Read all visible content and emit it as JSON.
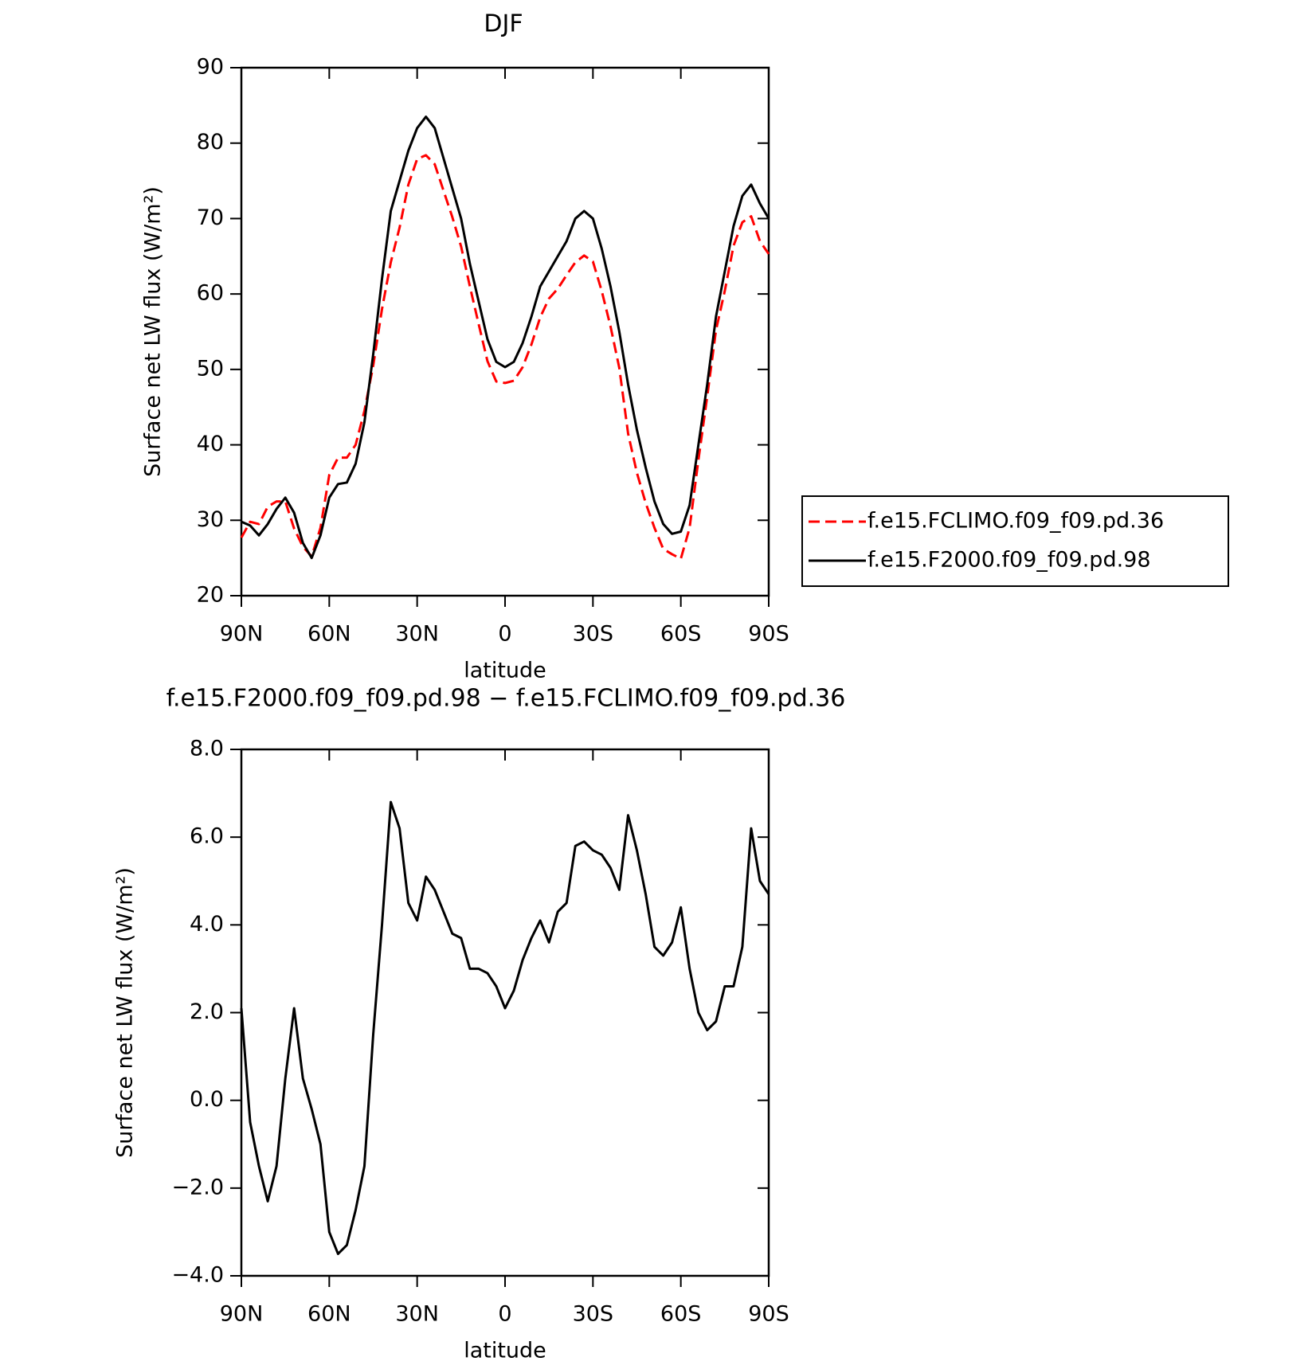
{
  "chart_data": [
    {
      "type": "line",
      "title": "DJF",
      "xlabel": "latitude",
      "ylabel": "Surface net LW flux (W/m²)",
      "x": [
        90,
        87,
        84,
        81,
        78,
        75,
        72,
        69,
        66,
        63,
        60,
        57,
        54,
        51,
        48,
        45,
        42,
        39,
        36,
        33,
        30,
        27,
        24,
        21,
        18,
        15,
        12,
        9,
        6,
        3,
        0,
        -3,
        -6,
        -9,
        -12,
        -15,
        -18,
        -21,
        -24,
        -27,
        -30,
        -33,
        -36,
        -39,
        -42,
        -45,
        -48,
        -51,
        -54,
        -57,
        -60,
        -63,
        -66,
        -69,
        -72,
        -75,
        -78,
        -81,
        -84,
        -87,
        -90
      ],
      "series": [
        {
          "name": "f.e15.FCLIMO.f09_f09.pd.36",
          "color": "#ff0000",
          "dashed": true,
          "values": [
            27.7,
            29.8,
            29.5,
            31.8,
            32.5,
            32.5,
            28.9,
            26.5,
            25.2,
            29,
            36,
            38.3,
            38.3,
            40,
            44.5,
            50.5,
            58,
            64.2,
            68.8,
            74.5,
            77.9,
            78.4,
            77.2,
            73.7,
            70.2,
            66.3,
            61,
            56,
            51.1,
            48.4,
            48.2,
            48.5,
            50.3,
            53.3,
            56.9,
            59.4,
            60.7,
            62.5,
            64.2,
            65.1,
            64.3,
            60.4,
            55.7,
            50.2,
            41.5,
            36.3,
            32.3,
            29,
            26.2,
            25.5,
            24.9,
            29,
            38,
            46.4,
            55.2,
            60.4,
            66.4,
            69.5,
            70.3,
            67,
            65.3
          ]
        },
        {
          "name": "f.e15.F2000.f09_f09.pd.98",
          "color": "#000000",
          "dashed": false,
          "values": [
            29.8,
            29.3,
            28,
            29.5,
            31.5,
            33,
            31,
            27,
            25,
            28,
            33,
            34.8,
            35,
            37.5,
            43,
            52,
            62,
            71,
            75,
            79,
            82,
            83.5,
            82,
            78,
            74,
            70,
            64,
            59,
            54,
            51,
            50.3,
            51,
            53.5,
            57,
            61,
            63,
            65,
            67,
            70,
            71,
            70,
            66,
            61,
            55,
            48,
            42,
            37,
            32.5,
            29.5,
            28.2,
            28.5,
            32,
            40,
            48,
            57,
            63,
            69,
            73,
            74.5,
            72,
            70
          ]
        }
      ],
      "xlim": [
        90,
        -90
      ],
      "xticks": [
        {
          "value": 90,
          "label": "90N"
        },
        {
          "value": 60,
          "label": "60N"
        },
        {
          "value": 30,
          "label": "30N"
        },
        0,
        {
          "value": -30,
          "label": "30S"
        },
        {
          "value": -60,
          "label": "60S"
        },
        {
          "value": -90,
          "label": "90S"
        }
      ],
      "ylim": [
        20,
        90
      ],
      "yticks": [
        20,
        30,
        40,
        50,
        60,
        70,
        80,
        90
      ],
      "legend": "right"
    },
    {
      "type": "line",
      "title": "f.e15.F2000.f09_f09.pd.98 − f.e15.FCLIMO.f09_f09.pd.36",
      "xlabel": "latitude",
      "ylabel": "Surface net LW flux (W/m²)",
      "x": [
        90,
        87,
        84,
        81,
        78,
        75,
        72,
        69,
        66,
        63,
        60,
        57,
        54,
        51,
        48,
        45,
        42,
        39,
        36,
        33,
        30,
        27,
        24,
        21,
        18,
        15,
        12,
        9,
        6,
        3,
        0,
        -3,
        -6,
        -9,
        -12,
        -15,
        -18,
        -21,
        -24,
        -27,
        -30,
        -33,
        -36,
        -39,
        -42,
        -45,
        -48,
        -51,
        -54,
        -57,
        -60,
        -63,
        -66,
        -69,
        -72,
        -75,
        -78,
        -81,
        -84,
        -87,
        -90
      ],
      "series": [
        {
          "color": "#000000",
          "dashed": false,
          "values": [
            2.1,
            -0.5,
            -1.5,
            -2.3,
            -1.5,
            0.5,
            2.1,
            0.5,
            -0.2,
            -1,
            -3,
            -3.5,
            -3.3,
            -2.5,
            -1.5,
            1.5,
            4,
            6.8,
            6.2,
            4.5,
            4.1,
            5.1,
            4.8,
            4.3,
            3.8,
            3.7,
            3.0,
            3.0,
            2.9,
            2.6,
            2.1,
            2.5,
            3.2,
            3.7,
            4.1,
            3.6,
            4.3,
            4.5,
            5.8,
            5.9,
            5.7,
            5.6,
            5.3,
            4.8,
            6.5,
            5.7,
            4.7,
            3.5,
            3.3,
            3.6,
            4.4,
            3.0,
            2.0,
            1.6,
            1.8,
            2.6,
            2.6,
            3.5,
            6.2,
            5.0,
            4.7
          ]
        }
      ],
      "xlim": [
        90,
        -90
      ],
      "xticks": [
        {
          "value": 90,
          "label": "90N"
        },
        {
          "value": 60,
          "label": "60N"
        },
        {
          "value": 30,
          "label": "30N"
        },
        0,
        {
          "value": -30,
          "label": "30S"
        },
        {
          "value": -60,
          "label": "60S"
        },
        {
          "value": -90,
          "label": "90S"
        }
      ],
      "ylim": [
        -4,
        8
      ],
      "yticks": [
        {
          "value": -4,
          "label": "−4.0"
        },
        {
          "value": -2,
          "label": "−2.0"
        },
        {
          "value": 0,
          "label": "0.0"
        },
        {
          "value": 2,
          "label": "2.0"
        },
        {
          "value": 4,
          "label": "4.0"
        },
        {
          "value": 6,
          "label": "6.0"
        },
        {
          "value": 8,
          "label": "8.0"
        }
      ]
    }
  ]
}
